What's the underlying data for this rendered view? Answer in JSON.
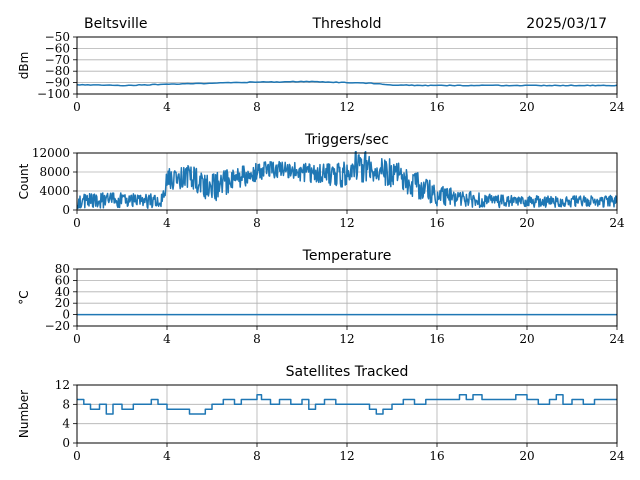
{
  "header": {
    "station": "Beltsville",
    "date": "2025/03/17"
  },
  "style": {
    "line_color": "#1f77b4"
  },
  "chart_data": [
    {
      "type": "line",
      "title": "Threshold",
      "ylabel": "dBm",
      "xlim": [
        0,
        24
      ],
      "ylim": [
        -100,
        -50
      ],
      "xticks": [
        0,
        4,
        8,
        12,
        16,
        20,
        24
      ],
      "yticks": [
        -100,
        -90,
        -80,
        -70,
        -60,
        -50
      ],
      "ytick_labels": [
        "−100",
        "−90",
        "−80",
        "−70",
        "−60",
        "−50"
      ],
      "grid": true,
      "series": [
        {
          "style": "smooth",
          "x": [
            0,
            1,
            2,
            3,
            4,
            5,
            6,
            7,
            8,
            9,
            10,
            11,
            12,
            13,
            14,
            15,
            16,
            17,
            18,
            19,
            20,
            21,
            22,
            23,
            24
          ],
          "values": [
            -92,
            -92,
            -92.5,
            -92,
            -91.5,
            -91,
            -90.5,
            -90,
            -89.5,
            -89.5,
            -89,
            -89.5,
            -90,
            -90.5,
            -92,
            -92.5,
            -92.5,
            -92.5,
            -92.5,
            -92.5,
            -92.5,
            -92.5,
            -92.5,
            -92.5,
            -92.5
          ]
        }
      ]
    },
    {
      "type": "line",
      "title": "Triggers/sec",
      "ylabel": "Count",
      "xlim": [
        0,
        24
      ],
      "ylim": [
        0,
        12000
      ],
      "xticks": [
        0,
        4,
        8,
        12,
        16,
        20,
        24
      ],
      "yticks": [
        0,
        4000,
        8000,
        12000
      ],
      "ytick_labels": [
        "0",
        "4000",
        "8000",
        "12000"
      ],
      "grid": true,
      "series": [
        {
          "style": "noisy",
          "x": [
            0,
            1,
            2,
            3,
            3.8,
            4,
            5,
            6,
            7,
            8,
            9,
            10,
            11,
            12,
            12.5,
            13,
            14,
            15,
            15.5,
            16,
            17,
            18,
            19,
            20,
            21,
            22,
            23,
            24
          ],
          "values": [
            1800,
            2000,
            2000,
            1800,
            2000,
            6500,
            7000,
            4500,
            6500,
            8000,
            8500,
            8000,
            7500,
            7500,
            9500,
            9000,
            8000,
            5500,
            4500,
            3000,
            2500,
            2000,
            1800,
            1800,
            1800,
            1800,
            1800,
            1800
          ],
          "spread": [
            1500,
            1600,
            1600,
            1500,
            1600,
            2200,
            2500,
            3000,
            2600,
            2000,
            1800,
            2000,
            2200,
            2800,
            3500,
            3500,
            3200,
            3000,
            2800,
            2200,
            1800,
            1500,
            1300,
            1200,
            1200,
            1200,
            1200,
            1300
          ]
        }
      ]
    },
    {
      "type": "line",
      "title": "Temperature",
      "ylabel": "°C",
      "xlim": [
        0,
        24
      ],
      "ylim": [
        -20,
        80
      ],
      "xticks": [
        0,
        4,
        8,
        12,
        16,
        20,
        24
      ],
      "yticks": [
        -20,
        0,
        20,
        40,
        60,
        80
      ],
      "ytick_labels": [
        "−20",
        "0",
        "20",
        "40",
        "60",
        "80"
      ],
      "grid": true,
      "series": [
        {
          "style": "smooth",
          "x": [
            0,
            24
          ],
          "values": [
            0,
            0
          ]
        }
      ]
    },
    {
      "type": "line",
      "title": "Satellites Tracked",
      "ylabel": "Number",
      "xlim": [
        0,
        24
      ],
      "ylim": [
        0,
        12
      ],
      "xticks": [
        0,
        4,
        8,
        12,
        16,
        20,
        24
      ],
      "yticks": [
        0,
        4,
        8,
        12
      ],
      "ytick_labels": [
        "0",
        "4",
        "8",
        "12"
      ],
      "grid": true,
      "series": [
        {
          "style": "step",
          "x": [
            0,
            0.3,
            0.6,
            1,
            1.3,
            1.6,
            2,
            2.5,
            3,
            3.3,
            3.6,
            4,
            4.5,
            5,
            5.3,
            5.7,
            6,
            6.5,
            7,
            7.3,
            7.8,
            8,
            8.2,
            8.6,
            9,
            9.5,
            10,
            10.3,
            10.6,
            11,
            11.5,
            12,
            12.5,
            13,
            13.3,
            13.6,
            14,
            14.5,
            15,
            15.5,
            16,
            16.5,
            17,
            17.3,
            17.6,
            18,
            18.5,
            19,
            19.5,
            20,
            20.5,
            21,
            21.3,
            21.6,
            22,
            22.5,
            23,
            23.5,
            24
          ],
          "values": [
            9,
            8,
            7,
            8,
            6,
            8,
            7,
            8,
            8,
            9,
            8,
            7,
            7,
            6,
            6,
            7,
            8,
            9,
            8,
            9,
            9,
            10,
            9,
            8,
            9,
            8,
            9,
            7,
            8,
            9,
            8,
            8,
            8,
            7,
            6,
            7,
            8,
            9,
            8,
            9,
            9,
            9,
            10,
            9,
            10,
            9,
            9,
            9,
            10,
            9,
            8,
            9,
            10,
            8,
            9,
            8,
            9,
            9,
            9
          ]
        }
      ]
    }
  ]
}
